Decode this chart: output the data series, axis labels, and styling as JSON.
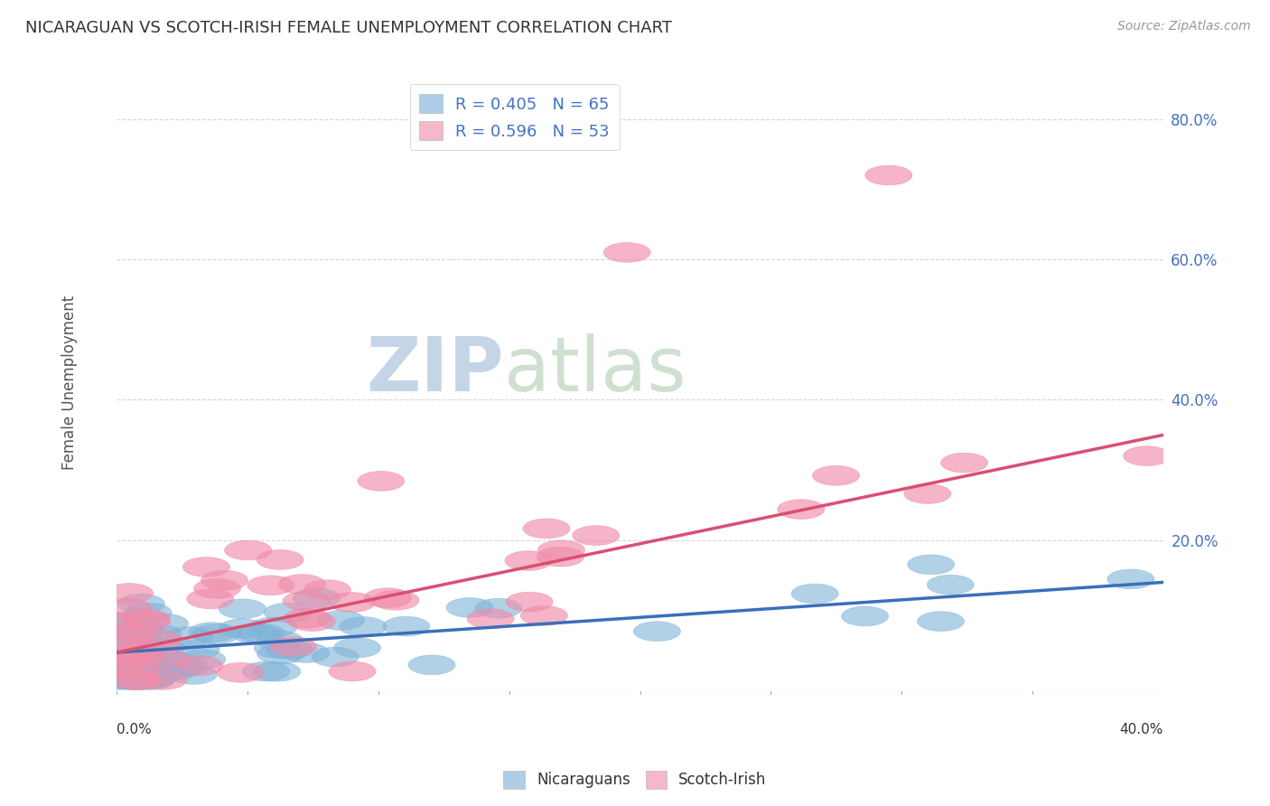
{
  "title": "NICARAGUAN VS SCOTCH-IRISH FEMALE UNEMPLOYMENT CORRELATION CHART",
  "source": "Source: ZipAtlas.com",
  "ylabel": "Female Unemployment",
  "watermark_zip": "ZIP",
  "watermark_atlas": "atlas",
  "blue_scatter_color": "#7eb3d8",
  "pink_scatter_color": "#f08caa",
  "blue_line_color": "#3a6fba",
  "pink_line_color": "#d94f72",
  "blue_legend_color": "#aecde8",
  "pink_legend_color": "#f5b8ca",
  "legend_text_color": "#4472c4",
  "legend_label_color": "#333333",
  "title_color": "#333333",
  "source_color": "#999999",
  "grid_color": "#cccccc",
  "background_color": "#ffffff",
  "ytick_color": "#4472c4",
  "xtick_color": "#333333",
  "xlim": [
    0.0,
    0.4
  ],
  "ylim": [
    -0.02,
    0.87
  ],
  "yticks": [
    0.0,
    0.2,
    0.4,
    0.6,
    0.8
  ],
  "ytick_labels": [
    "",
    "20.0%",
    "40.0%",
    "60.0%",
    "80.0%"
  ],
  "R_nicaraguan": 0.405,
  "N_nicaraguan": 65,
  "R_scotch_irish": 0.596,
  "N_scotch_irish": 53,
  "nic_trend_start": 0.04,
  "nic_trend_end": 0.14,
  "si_trend_start": 0.04,
  "si_trend_end": 0.35
}
